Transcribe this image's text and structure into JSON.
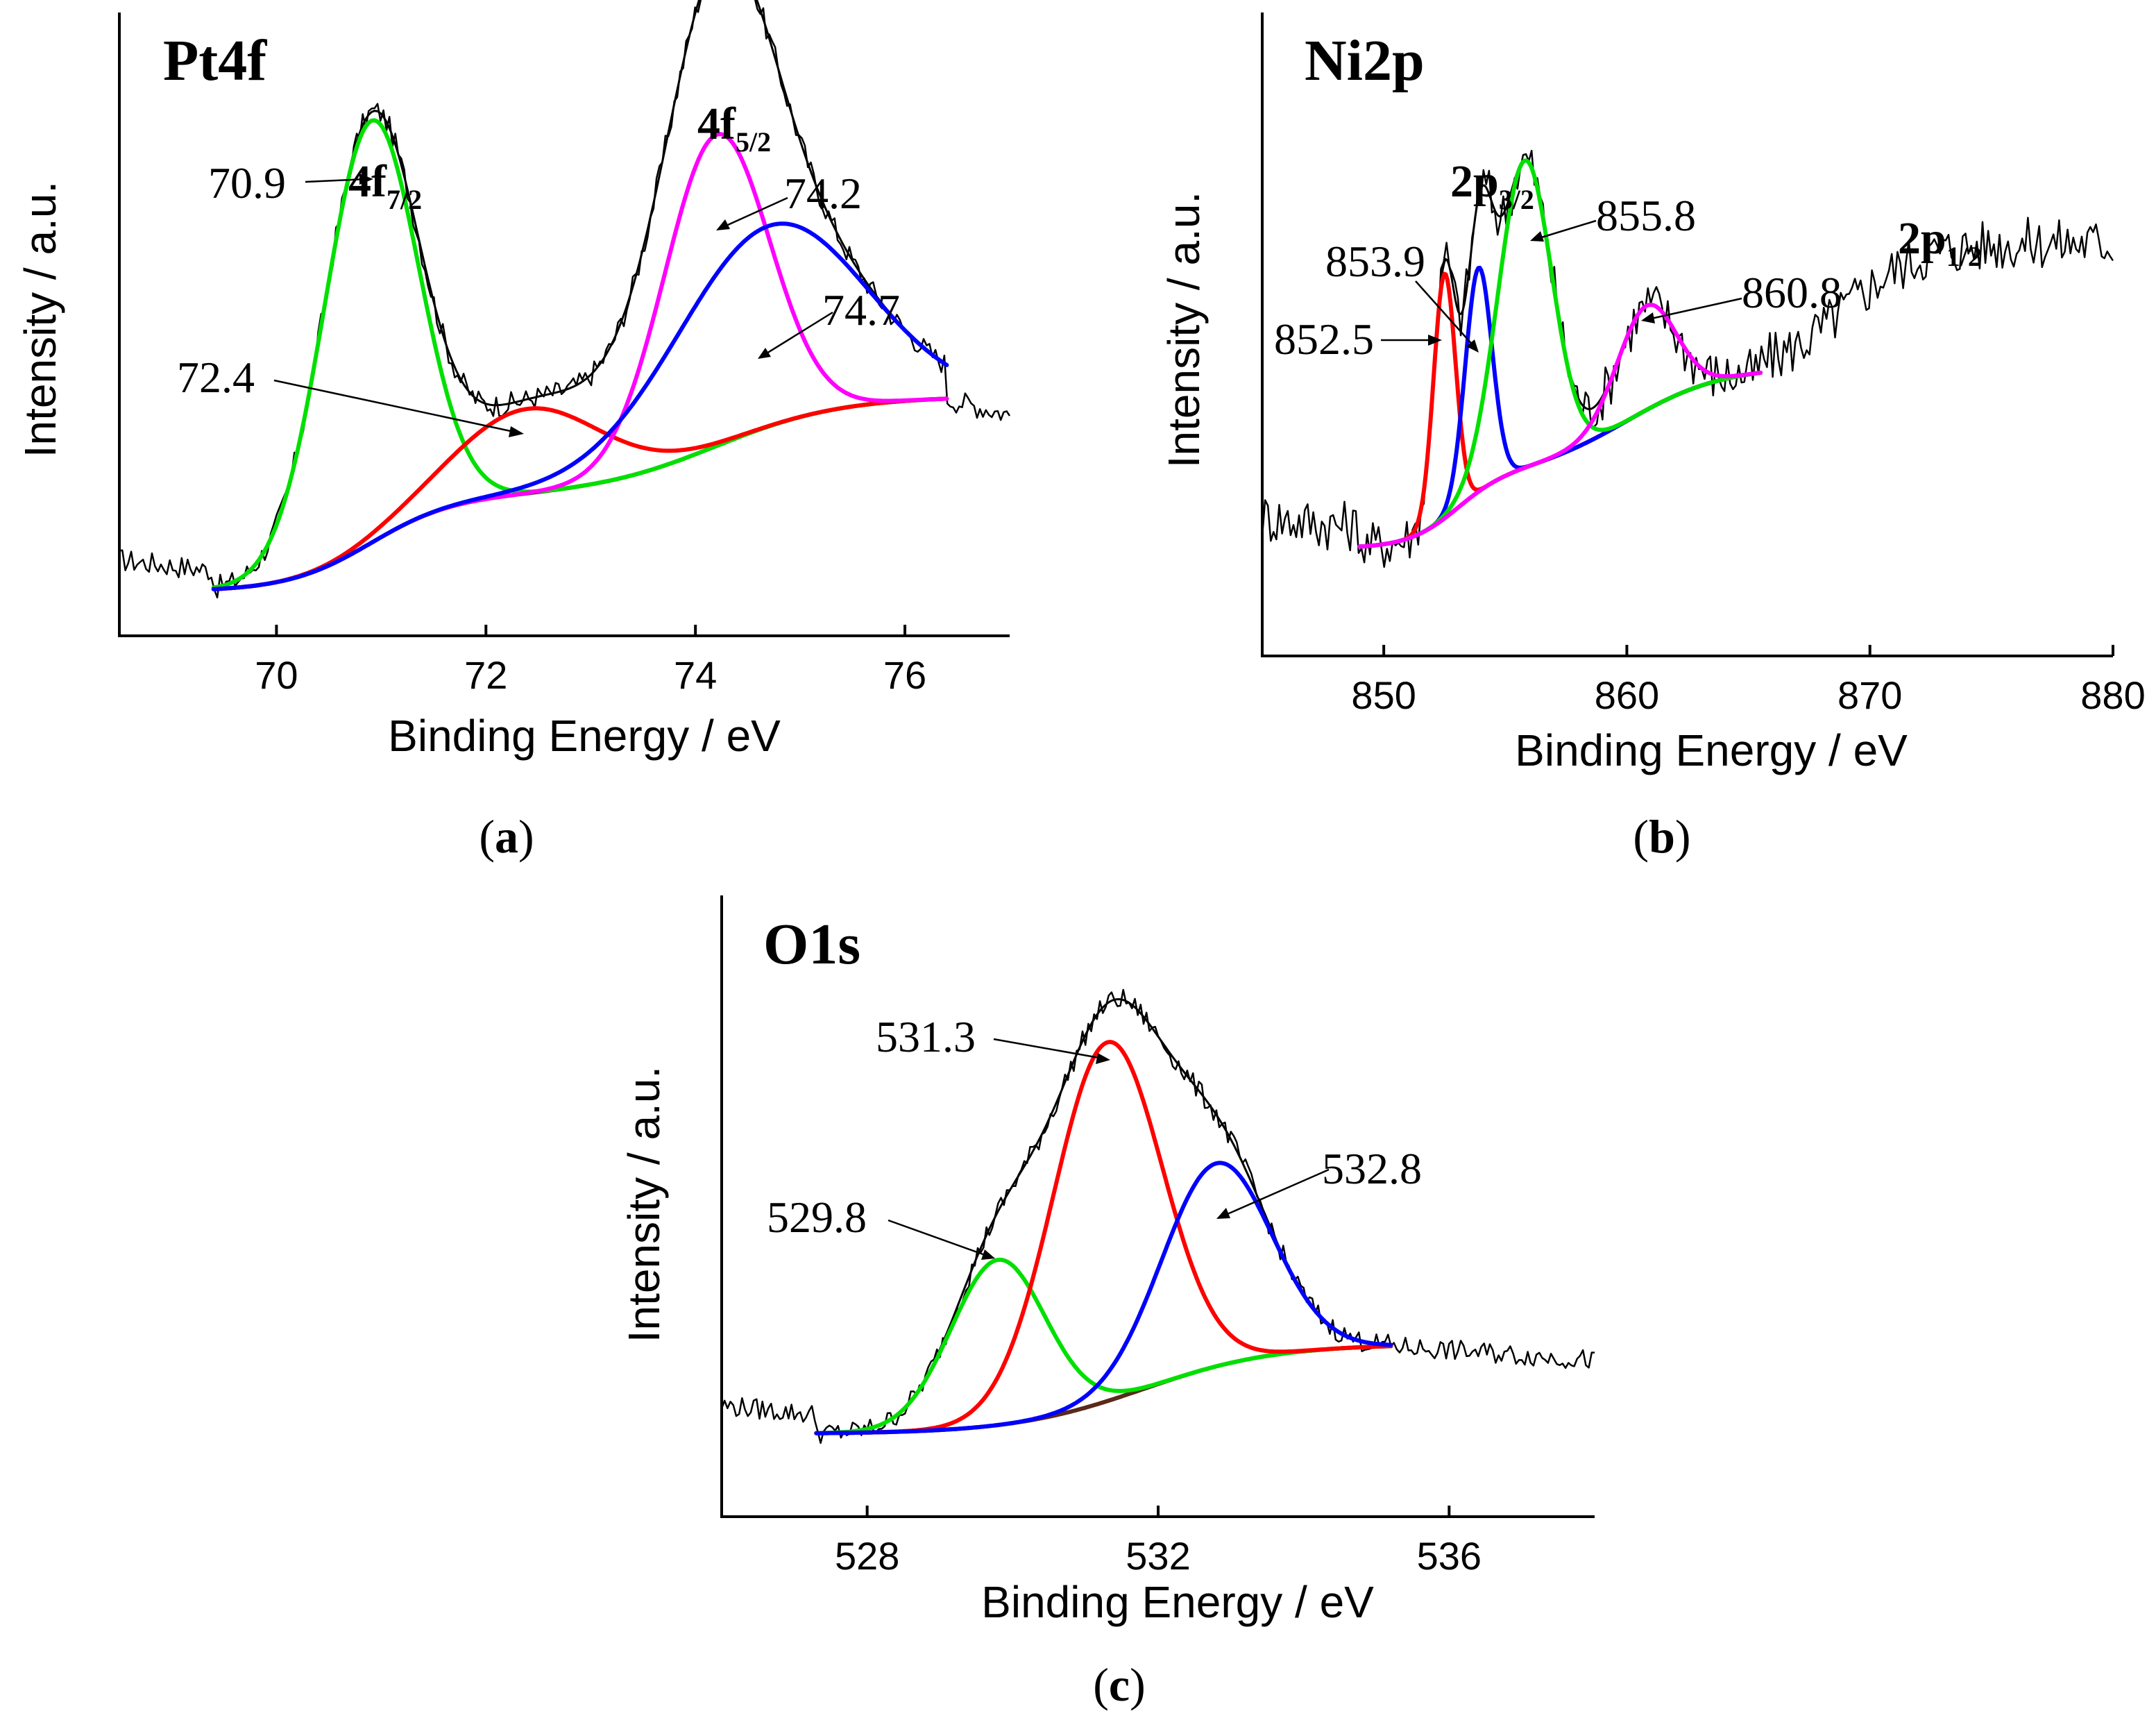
{
  "chart_data": [
    {
      "id": "a",
      "type": "line",
      "title": "Pt4f",
      "xlabel": "Binding Energy / eV",
      "ylabel": "Intensity / a.u.",
      "caption": "a",
      "xlim": [
        68.5,
        77
      ],
      "ylim": [
        0,
        1
      ],
      "xticks": [
        70,
        72,
        74,
        76
      ],
      "xtick_labels": [
        "70",
        "72",
        "74",
        "76"
      ],
      "fit_range": [
        69.4,
        76.4
      ],
      "baseline": {
        "low": 0.05,
        "high": 0.42,
        "steps": [
          {
            "center": 70.9,
            "height": 0.49,
            "width": 0.4
          },
          {
            "center": 74.2,
            "height": 0.51,
            "width": 0.6
          }
        ]
      },
      "components": [
        {
          "name": "70.9",
          "center": 70.9,
          "height": 0.8,
          "sigma": 0.45,
          "color": "#00e000"
        },
        {
          "name": "72.4",
          "center": 72.4,
          "height": 0.16,
          "sigma": 0.7,
          "color": "#ff0000"
        },
        {
          "name": "74.2",
          "center": 74.2,
          "height": 0.59,
          "sigma": 0.5,
          "color": "#ff00ff"
        },
        {
          "name": "74.7",
          "center": 74.7,
          "height": 0.38,
          "sigma": 0.9,
          "color": "#0000ff"
        }
      ],
      "peak_labels": [
        {
          "text": "70.9",
          "x": 70.9
        },
        {
          "text": "72.4",
          "x": 72.4
        },
        {
          "text": "74.2",
          "x": 74.2
        },
        {
          "text": "74.7",
          "x": 74.7
        }
      ],
      "orbital_labels": [
        {
          "main": "4f",
          "sub": "7/2"
        },
        {
          "main": "4f",
          "sub": "5/2"
        }
      ]
    },
    {
      "id": "b",
      "type": "line",
      "title": "Ni2p",
      "xlabel": "Binding Energy / eV",
      "ylabel": "Intensity / a.u.",
      "caption": "b",
      "xlim": [
        845,
        880
      ],
      "ylim": [
        0,
        1
      ],
      "xticks": [
        850,
        860,
        870,
        880
      ],
      "xtick_labels": [
        "850",
        "860",
        "870",
        "880"
      ],
      "fit_range": [
        849,
        865.5
      ],
      "baseline": {
        "low": 0.12,
        "high": 0.47,
        "steps": [
          {
            "center": 853,
            "height": 0.4,
            "width": 1.0
          },
          {
            "center": 860,
            "height": 0.6,
            "width": 2.0
          }
        ]
      },
      "components": [
        {
          "name": "852.5",
          "center": 852.5,
          "height": 0.47,
          "sigma": 0.45,
          "color": "#ff0000"
        },
        {
          "name": "853.9",
          "center": 853.9,
          "height": 0.43,
          "sigma": 0.55,
          "color": "#0000ff"
        },
        {
          "name": "855.8",
          "center": 855.8,
          "height": 0.59,
          "sigma": 1.1,
          "color": "#00e000"
        },
        {
          "name": "860.8",
          "center": 860.8,
          "height": 0.2,
          "sigma": 1.2,
          "color": "#ff00ff"
        }
      ],
      "peak_labels": [
        {
          "text": "852.5",
          "x": 852.5
        },
        {
          "text": "853.9",
          "x": 853.9
        },
        {
          "text": "855.8",
          "x": 855.8
        },
        {
          "text": "860.8",
          "x": 860.8
        }
      ],
      "orbital_labels": [
        {
          "main": "2p",
          "sub": "3/2"
        },
        {
          "main": "2p",
          "sub": "1/2"
        }
      ]
    },
    {
      "id": "c",
      "type": "line",
      "title": "O1s",
      "xlabel": "Binding Energy / eV",
      "ylabel": "Intensity / a.u.",
      "caption": "c",
      "xlim": [
        526,
        538
      ],
      "ylim": [
        0,
        1
      ],
      "xticks": [
        528,
        532,
        536
      ],
      "xtick_labels": [
        "528",
        "532",
        "536"
      ],
      "fit_range": [
        527.3,
        535.2
      ],
      "baseline": {
        "low": 0.08,
        "high": 0.27,
        "steps": [
          {
            "center": 531.8,
            "height": 1.0,
            "width": 0.9
          }
        ]
      },
      "components": [
        {
          "name": "529.8",
          "center": 529.8,
          "height": 0.35,
          "sigma": 0.65,
          "color": "#00e000"
        },
        {
          "name": "531.3",
          "center": 531.3,
          "height": 0.76,
          "sigma": 0.75,
          "color": "#ff0000"
        },
        {
          "name": "532.8",
          "center": 532.8,
          "height": 0.43,
          "sigma": 0.75,
          "color": "#0000ff"
        }
      ],
      "peak_labels": [
        {
          "text": "529.8",
          "x": 529.8
        },
        {
          "text": "531.3",
          "x": 531.3
        },
        {
          "text": "532.8",
          "x": 532.8
        }
      ],
      "orbital_labels": []
    }
  ]
}
